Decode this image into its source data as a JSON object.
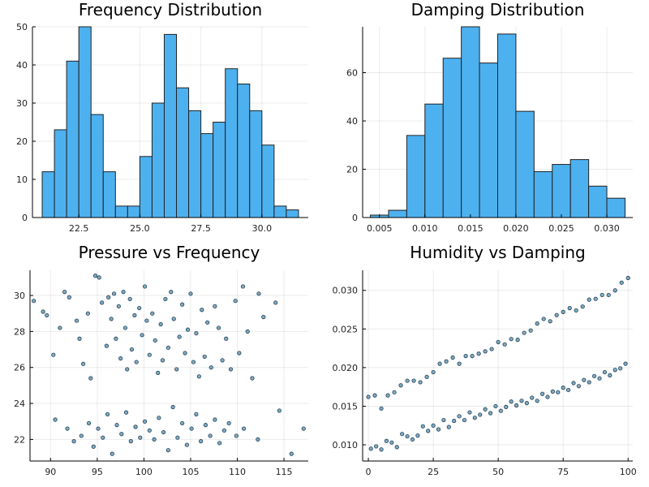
{
  "chart_data": [
    {
      "type": "bar",
      "title": "Frequency Distribution",
      "bin_edges": [
        21.0,
        21.5,
        22.0,
        22.5,
        23.0,
        23.5,
        24.0,
        24.5,
        25.0,
        25.5,
        26.0,
        26.5,
        27.0,
        27.5,
        28.0,
        28.5,
        29.0,
        29.5,
        30.0,
        30.5,
        31.0,
        31.5
      ],
      "values": [
        12,
        23,
        41,
        50,
        27,
        12,
        3,
        3,
        16,
        30,
        48,
        34,
        28,
        22,
        25,
        39,
        35,
        28,
        19,
        3,
        2
      ],
      "xlim": [
        20.6,
        31.9
      ],
      "ylim": [
        0,
        50
      ],
      "xticks": [
        22.5,
        25.0,
        27.5,
        30.0
      ],
      "xtick_labels": [
        "22.5",
        "25.0",
        "27.5",
        "30.0"
      ],
      "yticks": [
        0,
        10,
        20,
        30,
        40,
        50
      ],
      "ytick_labels": [
        "0",
        "10",
        "20",
        "30",
        "40",
        "50"
      ],
      "grid": true,
      "legend": "none"
    },
    {
      "type": "bar",
      "title": "Damping Distribution",
      "bin_edges": [
        0.004,
        0.006,
        0.008,
        0.01,
        0.012,
        0.014,
        0.016,
        0.018,
        0.02,
        0.022,
        0.024,
        0.026,
        0.028,
        0.03,
        0.032
      ],
      "values": [
        1,
        3,
        34,
        47,
        66,
        79,
        64,
        76,
        44,
        19,
        22,
        24,
        13,
        8
      ],
      "xlim": [
        0.00315,
        0.03285
      ],
      "ylim": [
        0,
        79
      ],
      "xticks": [
        0.005,
        0.01,
        0.015,
        0.02,
        0.025,
        0.03
      ],
      "xtick_labels": [
        "0.005",
        "0.010",
        "0.015",
        "0.020",
        "0.025",
        "0.030"
      ],
      "yticks": [
        0,
        20,
        40,
        60
      ],
      "ytick_labels": [
        "0",
        "20",
        "40",
        "60"
      ],
      "grid": true,
      "legend": "none"
    },
    {
      "type": "scatter",
      "title": "Pressure vs Frequency",
      "xlim": [
        87.8,
        117.6
      ],
      "ylim": [
        20.8,
        31.4
      ],
      "xticks": [
        90,
        95,
        100,
        105,
        110,
        115
      ],
      "xtick_labels": [
        "90",
        "95",
        "100",
        "105",
        "110",
        "115"
      ],
      "yticks": [
        22,
        24,
        26,
        28,
        30
      ],
      "ytick_labels": [
        "22",
        "24",
        "26",
        "28",
        "30"
      ],
      "grid": true,
      "legend": "none",
      "points": [
        [
          88.2,
          29.7
        ],
        [
          89.2,
          29.1
        ],
        [
          89.6,
          28.9
        ],
        [
          90.3,
          26.7
        ],
        [
          91.0,
          28.2
        ],
        [
          91.5,
          30.2
        ],
        [
          92.0,
          29.9
        ],
        [
          92.8,
          28.6
        ],
        [
          93.1,
          27.6
        ],
        [
          93.5,
          26.2
        ],
        [
          94.0,
          29.0
        ],
        [
          94.3,
          25.4
        ],
        [
          94.8,
          31.1
        ],
        [
          95.2,
          31.0
        ],
        [
          95.5,
          29.6
        ],
        [
          96.0,
          27.2
        ],
        [
          96.2,
          29.9
        ],
        [
          96.5,
          28.7
        ],
        [
          96.8,
          30.1
        ],
        [
          97.0,
          27.6
        ],
        [
          97.3,
          29.4
        ],
        [
          97.5,
          26.5
        ],
        [
          97.8,
          30.2
        ],
        [
          98.0,
          28.2
        ],
        [
          98.2,
          25.9
        ],
        [
          98.5,
          29.8
        ],
        [
          98.7,
          27.0
        ],
        [
          99.0,
          28.9
        ],
        [
          99.2,
          26.3
        ],
        [
          99.5,
          29.3
        ],
        [
          99.8,
          27.8
        ],
        [
          100.1,
          30.5
        ],
        [
          100.3,
          28.6
        ],
        [
          100.6,
          26.7
        ],
        [
          100.9,
          29.0
        ],
        [
          101.2,
          27.5
        ],
        [
          101.5,
          25.7
        ],
        [
          101.8,
          28.4
        ],
        [
          102.0,
          26.4
        ],
        [
          102.3,
          29.8
        ],
        [
          102.6,
          27.1
        ],
        [
          102.9,
          30.2
        ],
        [
          103.2,
          28.7
        ],
        [
          103.5,
          25.9
        ],
        [
          103.8,
          27.7
        ],
        [
          104.1,
          29.5
        ],
        [
          104.4,
          26.8
        ],
        [
          104.7,
          28.1
        ],
        [
          105.0,
          30.1
        ],
        [
          105.3,
          26.3
        ],
        [
          105.6,
          27.9
        ],
        [
          105.9,
          25.5
        ],
        [
          106.2,
          29.2
        ],
        [
          106.5,
          26.6
        ],
        [
          106.8,
          28.5
        ],
        [
          107.2,
          26.0
        ],
        [
          107.6,
          29.4
        ],
        [
          108.0,
          28.2
        ],
        [
          108.4,
          26.4
        ],
        [
          108.8,
          27.6
        ],
        [
          109.3,
          25.9
        ],
        [
          109.8,
          29.7
        ],
        [
          110.2,
          26.8
        ],
        [
          110.6,
          30.5
        ],
        [
          111.1,
          28.0
        ],
        [
          111.6,
          25.4
        ],
        [
          112.3,
          30.1
        ],
        [
          112.8,
          28.8
        ],
        [
          114.1,
          29.6
        ],
        [
          90.5,
          23.1
        ],
        [
          91.8,
          22.6
        ],
        [
          92.5,
          21.9
        ],
        [
          93.3,
          22.2
        ],
        [
          94.1,
          22.9
        ],
        [
          94.6,
          21.6
        ],
        [
          95.1,
          22.6
        ],
        [
          95.6,
          22.1
        ],
        [
          96.1,
          23.4
        ],
        [
          96.6,
          21.2
        ],
        [
          97.1,
          22.8
        ],
        [
          97.6,
          22.3
        ],
        [
          98.1,
          23.5
        ],
        [
          98.6,
          21.9
        ],
        [
          99.1,
          22.7
        ],
        [
          99.6,
          22.1
        ],
        [
          100.1,
          23.0
        ],
        [
          100.6,
          22.5
        ],
        [
          101.1,
          22.0
        ],
        [
          101.6,
          23.2
        ],
        [
          102.1,
          22.4
        ],
        [
          102.6,
          21.4
        ],
        [
          103.1,
          23.8
        ],
        [
          103.6,
          22.1
        ],
        [
          104.1,
          22.9
        ],
        [
          104.6,
          21.7
        ],
        [
          105.1,
          22.6
        ],
        [
          105.6,
          23.4
        ],
        [
          106.1,
          21.9
        ],
        [
          106.6,
          22.8
        ],
        [
          107.1,
          22.2
        ],
        [
          107.6,
          23.1
        ],
        [
          108.1,
          21.8
        ],
        [
          108.6,
          22.5
        ],
        [
          109.1,
          22.9
        ],
        [
          109.9,
          22.2
        ],
        [
          110.7,
          22.6
        ],
        [
          112.2,
          22.0
        ],
        [
          114.5,
          23.6
        ],
        [
          115.8,
          21.2
        ],
        [
          117.1,
          22.6
        ]
      ]
    },
    {
      "type": "scatter",
      "title": "Humidity vs Damping",
      "xlim": [
        -2.2,
        101.8
      ],
      "ylim": [
        0.0079,
        0.0326
      ],
      "xticks": [
        0,
        25,
        50,
        75,
        100
      ],
      "xtick_labels": [
        "0",
        "25",
        "50",
        "75",
        "100"
      ],
      "yticks": [
        0.01,
        0.015,
        0.02,
        0.025,
        0.03
      ],
      "ytick_labels": [
        "0.010",
        "0.015",
        "0.020",
        "0.025",
        "0.030"
      ],
      "grid": true,
      "legend": "none",
      "points": [
        [
          0.0,
          0.0162
        ],
        [
          2.5,
          0.0164
        ],
        [
          5.0,
          0.0147
        ],
        [
          7.5,
          0.0164
        ],
        [
          10.0,
          0.0168
        ],
        [
          12.5,
          0.0177
        ],
        [
          15.0,
          0.0183
        ],
        [
          17.5,
          0.0183
        ],
        [
          20.0,
          0.0181
        ],
        [
          22.5,
          0.0188
        ],
        [
          25.0,
          0.0194
        ],
        [
          27.5,
          0.0205
        ],
        [
          30.0,
          0.0208
        ],
        [
          32.5,
          0.0213
        ],
        [
          35.0,
          0.0205
        ],
        [
          37.5,
          0.0215
        ],
        [
          40.0,
          0.0215
        ],
        [
          42.5,
          0.0218
        ],
        [
          45.0,
          0.0221
        ],
        [
          47.5,
          0.0224
        ],
        [
          50.0,
          0.0233
        ],
        [
          52.5,
          0.023
        ],
        [
          55.0,
          0.0237
        ],
        [
          57.5,
          0.0236
        ],
        [
          60.0,
          0.0245
        ],
        [
          62.5,
          0.0248
        ],
        [
          65.0,
          0.0257
        ],
        [
          67.5,
          0.0263
        ],
        [
          70.0,
          0.026
        ],
        [
          72.5,
          0.0268
        ],
        [
          75.0,
          0.0272
        ],
        [
          77.5,
          0.0277
        ],
        [
          80.0,
          0.0274
        ],
        [
          82.5,
          0.0279
        ],
        [
          85.0,
          0.0288
        ],
        [
          87.5,
          0.0289
        ],
        [
          90.0,
          0.0294
        ],
        [
          92.5,
          0.0294
        ],
        [
          95.0,
          0.03
        ],
        [
          97.5,
          0.031
        ],
        [
          100.0,
          0.0316
        ],
        [
          1.0,
          0.0095
        ],
        [
          3.0,
          0.0098
        ],
        [
          5.0,
          0.0094
        ],
        [
          7.0,
          0.0105
        ],
        [
          9.0,
          0.0103
        ],
        [
          11.0,
          0.0097
        ],
        [
          13.0,
          0.0114
        ],
        [
          15.0,
          0.0111
        ],
        [
          17.0,
          0.0107
        ],
        [
          19.0,
          0.0112
        ],
        [
          21.0,
          0.0124
        ],
        [
          23.0,
          0.0118
        ],
        [
          25.0,
          0.0125
        ],
        [
          27.0,
          0.012
        ],
        [
          29.0,
          0.0132
        ],
        [
          31.0,
          0.0123
        ],
        [
          33.0,
          0.0131
        ],
        [
          35.0,
          0.0137
        ],
        [
          37.0,
          0.0132
        ],
        [
          39.0,
          0.0142
        ],
        [
          41.0,
          0.0135
        ],
        [
          43.0,
          0.0139
        ],
        [
          45.0,
          0.0146
        ],
        [
          47.0,
          0.0141
        ],
        [
          49.0,
          0.015
        ],
        [
          51.0,
          0.0144
        ],
        [
          53.0,
          0.0149
        ],
        [
          55.0,
          0.0156
        ],
        [
          57.0,
          0.0151
        ],
        [
          59.0,
          0.0157
        ],
        [
          61.0,
          0.0154
        ],
        [
          63.0,
          0.0161
        ],
        [
          65.0,
          0.0157
        ],
        [
          67.0,
          0.0166
        ],
        [
          69.0,
          0.0162
        ],
        [
          71.0,
          0.0169
        ],
        [
          73.0,
          0.0168
        ],
        [
          75.0,
          0.0174
        ],
        [
          77.0,
          0.0171
        ],
        [
          79.0,
          0.018
        ],
        [
          81.0,
          0.0176
        ],
        [
          83.0,
          0.0184
        ],
        [
          85.0,
          0.0181
        ],
        [
          87.0,
          0.0189
        ],
        [
          89.0,
          0.0186
        ],
        [
          91.0,
          0.0194
        ],
        [
          93.0,
          0.019
        ],
        [
          95.0,
          0.0197
        ],
        [
          97.0,
          0.0199
        ],
        [
          99.0,
          0.0205
        ]
      ]
    }
  ]
}
